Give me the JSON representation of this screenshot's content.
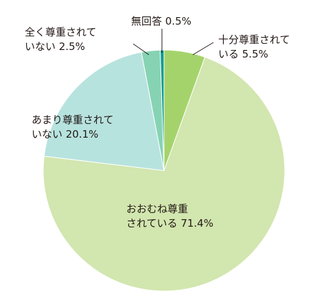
{
  "chart_data": {
    "type": "pie",
    "start": "12 o'clock",
    "direction": "clockwise",
    "slices": [
      {
        "label_lines": [
          "十分尊重されて",
          "いる 5.5%"
        ],
        "value": 5.5,
        "color": "#a5d36b"
      },
      {
        "label_lines": [
          "おおむね尊重",
          "されている 71.4%"
        ],
        "value": 71.4,
        "color": "#d2e6af"
      },
      {
        "label_lines": [
          "あまり尊重されて",
          "いない 20.1%"
        ],
        "value": 20.1,
        "color": "#b7e3df"
      },
      {
        "label_lines": [
          "全く尊重されて",
          "いない 2.5%"
        ],
        "value": 2.5,
        "color": "#86d3b3"
      },
      {
        "label_lines": [
          "無回答 0.5%"
        ],
        "value": 0.5,
        "color": "#0f9b8e"
      }
    ]
  }
}
